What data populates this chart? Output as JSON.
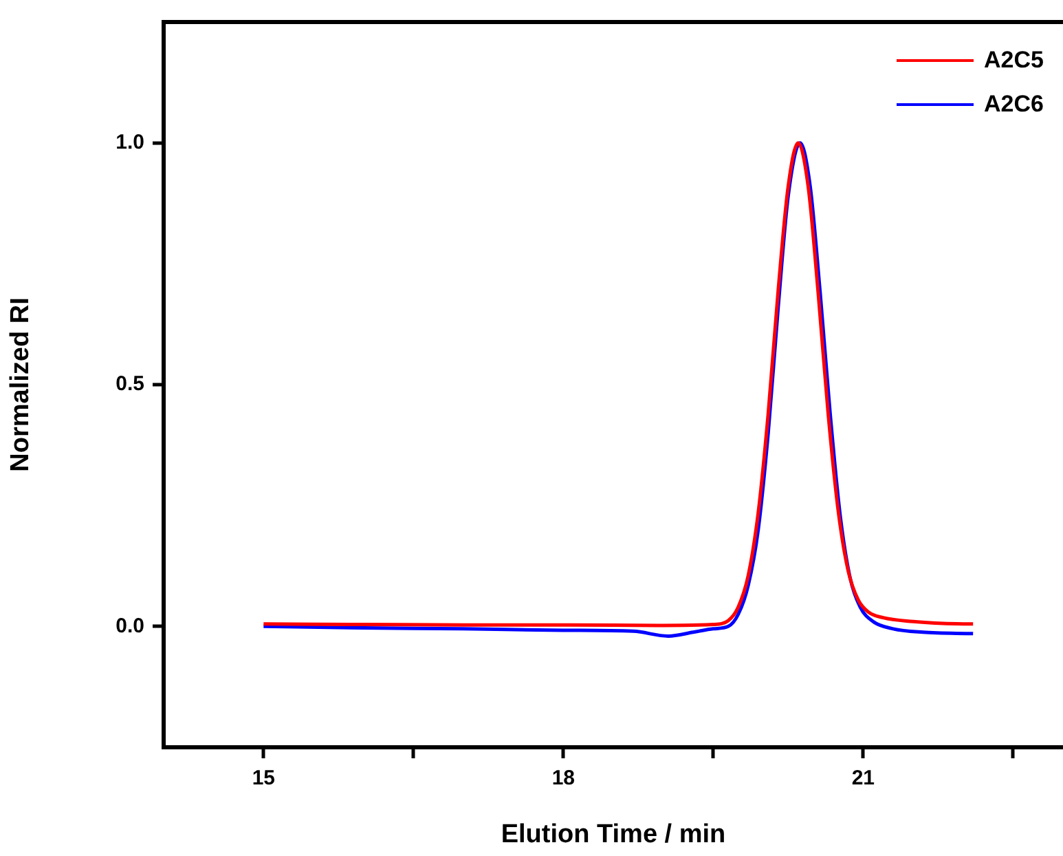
{
  "chart_data": {
    "type": "line",
    "xlabel": "Elution Time / min",
    "ylabel": "Normalized RI",
    "xlim": [
      14,
      23
    ],
    "xticks": [
      15,
      {
        "value": 16.5,
        "label": null
      },
      18,
      {
        "value": 19.5,
        "label": null
      },
      21,
      {
        "value": 22.5,
        "label": null
      }
    ],
    "ylim": [
      -0.25,
      1.25
    ],
    "yticks": [
      {
        "value": 0,
        "label": "0.0"
      },
      {
        "value": 0.5,
        "label": "0.5"
      },
      {
        "value": 1,
        "label": "1.0"
      }
    ],
    "grid": false,
    "legend": "top right",
    "marker": "none",
    "line_style": "solid",
    "series": [
      {
        "name": "A2C5",
        "color": "#ff0000",
        "x": [
          15,
          16,
          17,
          18,
          19,
          19.5,
          19.65,
          19.75,
          19.85,
          19.95,
          20.05,
          20.15,
          20.25,
          20.35,
          20.45,
          20.55,
          20.65,
          20.75,
          20.85,
          20.95,
          21.05,
          21.2,
          21.5,
          21.8,
          22.1
        ],
        "values": [
          0.005,
          0.004,
          0.003,
          0.003,
          0.002,
          0.004,
          0.012,
          0.04,
          0.105,
          0.235,
          0.44,
          0.695,
          0.91,
          1.0,
          0.91,
          0.69,
          0.44,
          0.24,
          0.115,
          0.055,
          0.03,
          0.018,
          0.01,
          0.006,
          0.005
        ]
      },
      {
        "name": "A2C6",
        "color": "#0000ff",
        "x": [
          15,
          16,
          17,
          18,
          18.7,
          19.05,
          19.3,
          19.5,
          19.65,
          19.75,
          19.85,
          19.95,
          20.05,
          20.15,
          20.25,
          20.37,
          20.47,
          20.57,
          20.67,
          20.77,
          20.87,
          20.97,
          21.1,
          21.3,
          21.6,
          22.1
        ],
        "values": [
          0,
          -0.003,
          -0.005,
          -0.008,
          -0.01,
          -0.02,
          -0.012,
          -0.005,
          0.0,
          0.025,
          0.085,
          0.2,
          0.4,
          0.66,
          0.89,
          1.0,
          0.91,
          0.69,
          0.44,
          0.23,
          0.1,
          0.04,
          0.01,
          -0.005,
          -0.012,
          -0.015
        ]
      }
    ]
  }
}
